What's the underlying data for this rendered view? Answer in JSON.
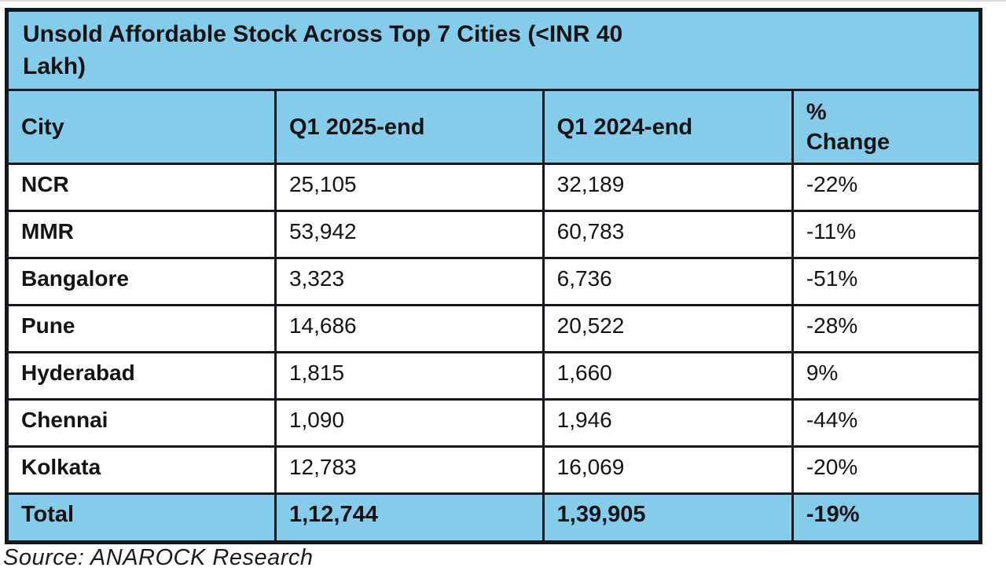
{
  "chart_data": {
    "type": "table",
    "title": "Unsold Affordable Stock Across Top 7 Cities (<INR 40 Lakh)",
    "columns": [
      "City",
      "Q1 2025-end",
      "Q1 2024-end",
      "% Change"
    ],
    "rows": [
      [
        "NCR",
        "25,105",
        "32,189",
        "-22%"
      ],
      [
        "MMR",
        "53,942",
        "60,783",
        "-11%"
      ],
      [
        "Bangalore",
        "3,323",
        "6,736",
        "-51%"
      ],
      [
        "Pune",
        "14,686",
        "20,522",
        "-28%"
      ],
      [
        "Hyderabad",
        "1,815",
        "1,660",
        "9%"
      ],
      [
        "Chennai",
        "1,090",
        "1,946",
        "-44%"
      ],
      [
        "Kolkata",
        "12,783",
        "16,069",
        "-20%"
      ]
    ],
    "total_row": [
      "Total",
      "1,12,744",
      "1,39,905",
      "-19%"
    ],
    "source": "Source: ANAROCK Research",
    "units": "housing units (counts), change in percent",
    "layout": "grid table, title row and header row and total row highlighted blue"
  },
  "display": {
    "title_lines": [
      "Unsold Affordable Stock Across Top 7 Cities (<INR 40",
      "Lakh)"
    ],
    "pct_header_lines": [
      "%",
      "Change"
    ]
  },
  "colors": {
    "highlight_bg": "#85cbea",
    "border": "#15181e",
    "text": "#141414",
    "page_bg": "#ffffff"
  }
}
